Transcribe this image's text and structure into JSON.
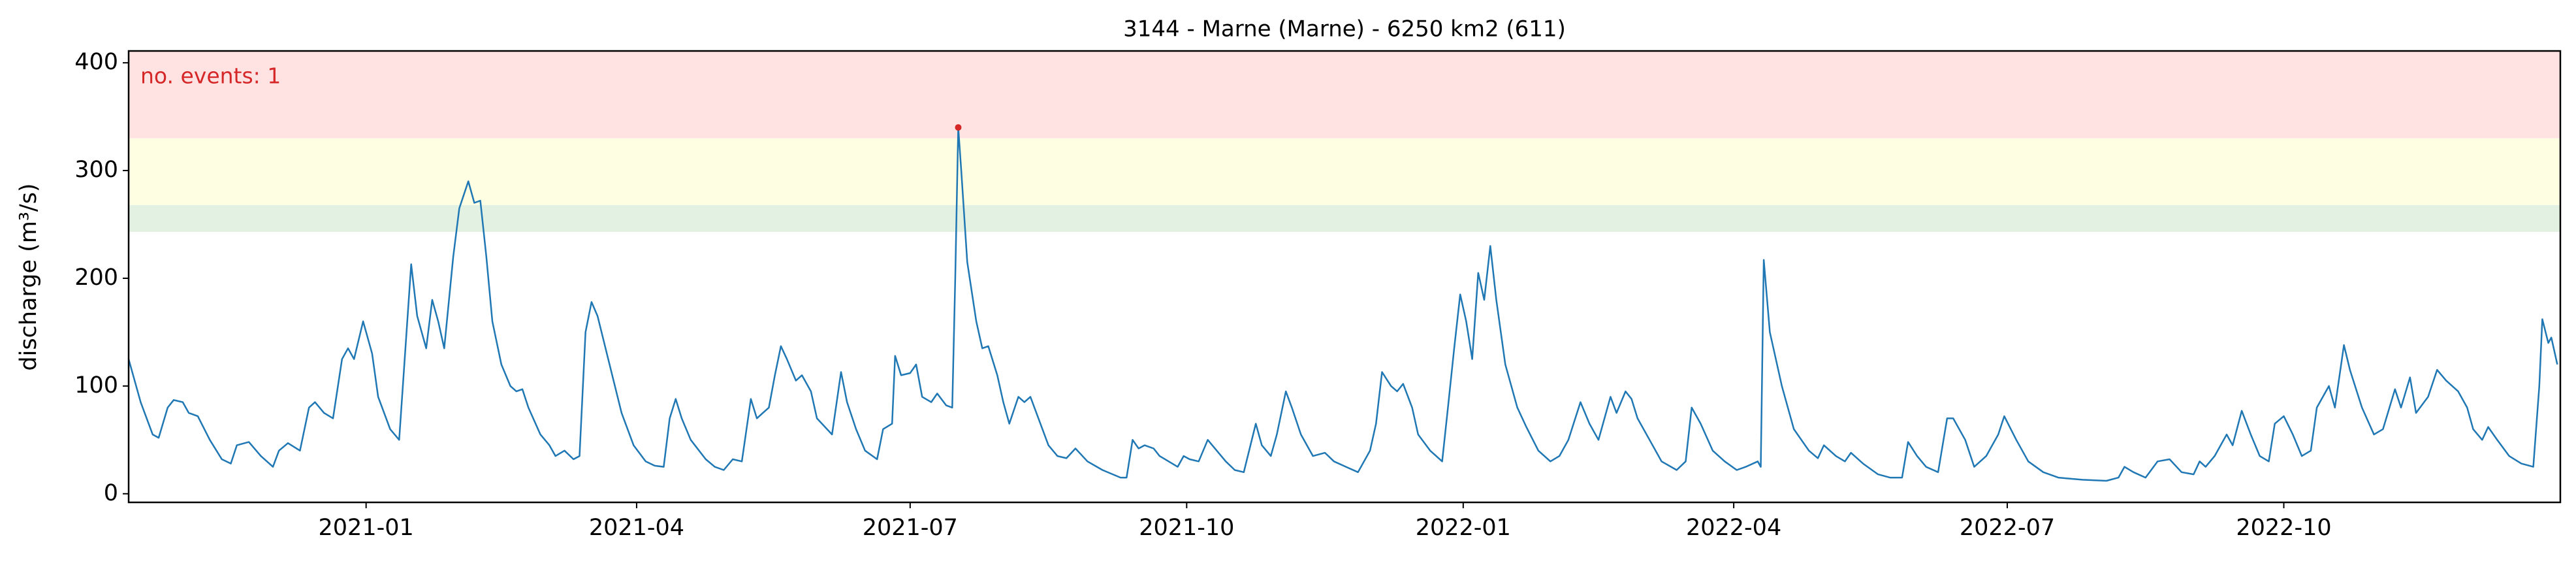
{
  "chart_data": {
    "type": "line",
    "title": "3144 - Marne (Marne) - 6250 km2 (611)",
    "y_label": "discharge (m³/s)",
    "annotation": "no. events: 1",
    "color": "#1f77b4",
    "xlim": [
      "2020-10-14",
      "2023-01-01"
    ],
    "xticks": [
      {
        "value": "2021-01",
        "label": "2021-01"
      },
      {
        "value": "2021-04",
        "label": "2021-04"
      },
      {
        "value": "2021-07",
        "label": "2021-07"
      },
      {
        "value": "2021-10",
        "label": "2021-10"
      },
      {
        "value": "2022-01",
        "label": "2022-01"
      },
      {
        "value": "2022-04",
        "label": "2022-04"
      },
      {
        "value": "2022-07",
        "label": "2022-07"
      },
      {
        "value": "2022-10",
        "label": "2022-10"
      }
    ],
    "ylim": [
      -8,
      411
    ],
    "yticks": [
      0,
      100,
      200,
      300,
      400
    ],
    "bands": [
      {
        "from": 243,
        "to": 268,
        "color": "#e3f1e3"
      },
      {
        "from": 268,
        "to": 330,
        "color": "#fefee2"
      },
      {
        "from": 330,
        "to": 411,
        "color": "#ffe2e2"
      }
    ],
    "events": [
      {
        "x": "2021-07-17",
        "y": 340,
        "color": "#d62728"
      }
    ],
    "x": [
      "2020-10-14",
      "2020-10-18",
      "2020-10-22",
      "2020-10-24",
      "2020-10-27",
      "2020-10-29",
      "2020-11-01",
      "2020-11-03",
      "2020-11-06",
      "2020-11-10",
      "2020-11-14",
      "2020-11-17",
      "2020-11-19",
      "2020-11-23",
      "2020-11-27",
      "2020-12-01",
      "2020-12-03",
      "2020-12-06",
      "2020-12-10",
      "2020-12-13",
      "2020-12-15",
      "2020-12-18",
      "2020-12-21",
      "2020-12-24",
      "2020-12-26",
      "2020-12-28",
      "2020-12-31",
      "2021-01-03",
      "2021-01-05",
      "2021-01-09",
      "2021-01-12",
      "2021-01-16",
      "2021-01-18",
      "2021-01-21",
      "2021-01-23",
      "2021-01-25",
      "2021-01-27",
      "2021-01-30",
      "2021-02-01",
      "2021-02-04",
      "2021-02-06",
      "2021-02-08",
      "2021-02-10",
      "2021-02-12",
      "2021-02-15",
      "2021-02-18",
      "2021-02-20",
      "2021-02-22",
      "2021-02-24",
      "2021-02-28",
      "2021-03-03",
      "2021-03-05",
      "2021-03-08",
      "2021-03-11",
      "2021-03-13",
      "2021-03-15",
      "2021-03-17",
      "2021-03-19",
      "2021-03-23",
      "2021-03-27",
      "2021-03-31",
      "2021-04-04",
      "2021-04-07",
      "2021-04-10",
      "2021-04-12",
      "2021-04-14",
      "2021-04-16",
      "2021-04-19",
      "2021-04-24",
      "2021-04-27",
      "2021-04-30",
      "2021-05-03",
      "2021-05-06",
      "2021-05-09",
      "2021-05-11",
      "2021-05-13",
      "2021-05-15",
      "2021-05-17",
      "2021-05-19",
      "2021-05-21",
      "2021-05-24",
      "2021-05-26",
      "2021-05-29",
      "2021-05-31",
      "2021-06-05",
      "2021-06-08",
      "2021-06-10",
      "2021-06-13",
      "2021-06-16",
      "2021-06-20",
      "2021-06-22",
      "2021-06-25",
      "2021-06-26",
      "2021-06-28",
      "2021-07-01",
      "2021-07-03",
      "2021-07-05",
      "2021-07-08",
      "2021-07-10",
      "2021-07-13",
      "2021-07-15",
      "2021-07-16",
      "2021-07-17",
      "2021-07-18",
      "2021-07-20",
      "2021-07-23",
      "2021-07-25",
      "2021-07-27",
      "2021-07-30",
      "2021-08-01",
      "2021-08-03",
      "2021-08-06",
      "2021-08-08",
      "2021-08-10",
      "2021-08-12",
      "2021-08-16",
      "2021-08-19",
      "2021-08-22",
      "2021-08-25",
      "2021-08-29",
      "2021-09-03",
      "2021-09-09",
      "2021-09-11",
      "2021-09-13",
      "2021-09-15",
      "2021-09-17",
      "2021-09-20",
      "2021-09-22",
      "2021-09-25",
      "2021-09-28",
      "2021-09-30",
      "2021-10-02",
      "2021-10-05",
      "2021-10-08",
      "2021-10-11",
      "2021-10-14",
      "2021-10-17",
      "2021-10-20",
      "2021-10-24",
      "2021-10-26",
      "2021-10-29",
      "2021-10-31",
      "2021-11-03",
      "2021-11-05",
      "2021-11-08",
      "2021-11-12",
      "2021-11-16",
      "2021-11-19",
      "2021-11-23",
      "2021-11-27",
      "2021-12-01",
      "2021-12-03",
      "2021-12-05",
      "2021-12-08",
      "2021-12-10",
      "2021-12-12",
      "2021-12-15",
      "2021-12-17",
      "2021-12-21",
      "2021-12-25",
      "2021-12-27",
      "2021-12-29",
      "2021-12-31",
      "2022-01-02",
      "2022-01-04",
      "2022-01-06",
      "2022-01-08",
      "2022-01-10",
      "2022-01-12",
      "2022-01-15",
      "2022-01-19",
      "2022-01-22",
      "2022-01-26",
      "2022-01-30",
      "2022-02-02",
      "2022-02-05",
      "2022-02-09",
      "2022-02-12",
      "2022-02-15",
      "2022-02-19",
      "2022-02-21",
      "2022-02-24",
      "2022-02-26",
      "2022-02-28",
      "2022-03-04",
      "2022-03-08",
      "2022-03-13",
      "2022-03-16",
      "2022-03-18",
      "2022-03-21",
      "2022-03-25",
      "2022-03-29",
      "2022-04-02",
      "2022-04-05",
      "2022-04-09",
      "2022-04-10",
      "2022-04-11",
      "2022-04-13",
      "2022-04-17",
      "2022-04-21",
      "2022-04-26",
      "2022-04-29",
      "2022-05-01",
      "2022-05-05",
      "2022-05-08",
      "2022-05-10",
      "2022-05-14",
      "2022-05-19",
      "2022-05-23",
      "2022-05-27",
      "2022-05-29",
      "2022-06-01",
      "2022-06-04",
      "2022-06-08",
      "2022-06-11",
      "2022-06-13",
      "2022-06-17",
      "2022-06-20",
      "2022-06-24",
      "2022-06-28",
      "2022-06-30",
      "2022-07-04",
      "2022-07-08",
      "2022-07-13",
      "2022-07-18",
      "2022-07-26",
      "2022-08-03",
      "2022-08-07",
      "2022-08-09",
      "2022-08-12",
      "2022-08-16",
      "2022-08-20",
      "2022-08-24",
      "2022-08-28",
      "2022-09-01",
      "2022-09-03",
      "2022-09-05",
      "2022-09-08",
      "2022-09-12",
      "2022-09-14",
      "2022-09-17",
      "2022-09-20",
      "2022-09-23",
      "2022-09-26",
      "2022-09-28",
      "2022-10-01",
      "2022-10-04",
      "2022-10-07",
      "2022-10-10",
      "2022-10-12",
      "2022-10-16",
      "2022-10-18",
      "2022-10-21",
      "2022-10-23",
      "2022-10-27",
      "2022-10-31",
      "2022-11-03",
      "2022-11-07",
      "2022-11-09",
      "2022-11-12",
      "2022-11-14",
      "2022-11-18",
      "2022-11-21",
      "2022-11-24",
      "2022-11-28",
      "2022-12-01",
      "2022-12-03",
      "2022-12-06",
      "2022-12-08",
      "2022-12-11",
      "2022-12-15",
      "2022-12-19",
      "2022-12-23",
      "2022-12-25",
      "2022-12-26",
      "2022-12-28",
      "2022-12-29",
      "2022-12-31"
    ],
    "values": [
      125,
      85,
      55,
      52,
      80,
      87,
      85,
      75,
      72,
      50,
      32,
      28,
      45,
      48,
      35,
      25,
      40,
      47,
      40,
      80,
      85,
      75,
      70,
      125,
      135,
      125,
      160,
      130,
      90,
      60,
      50,
      213,
      165,
      135,
      180,
      160,
      135,
      220,
      265,
      290,
      270,
      272,
      220,
      160,
      120,
      100,
      95,
      97,
      80,
      55,
      45,
      35,
      40,
      32,
      35,
      150,
      178,
      165,
      120,
      75,
      45,
      30,
      26,
      25,
      70,
      88,
      70,
      50,
      32,
      25,
      22,
      32,
      30,
      88,
      70,
      75,
      80,
      110,
      137,
      125,
      105,
      110,
      95,
      70,
      55,
      113,
      85,
      60,
      40,
      32,
      60,
      65,
      128,
      110,
      112,
      120,
      90,
      85,
      93,
      82,
      80,
      200,
      340,
      300,
      215,
      160,
      135,
      137,
      110,
      85,
      65,
      90,
      85,
      90,
      75,
      45,
      35,
      33,
      42,
      30,
      22,
      15,
      15,
      50,
      42,
      45,
      42,
      35,
      30,
      25,
      35,
      32,
      30,
      50,
      40,
      30,
      22,
      20,
      65,
      45,
      35,
      55,
      95,
      80,
      55,
      35,
      38,
      30,
      25,
      20,
      40,
      65,
      113,
      100,
      95,
      102,
      80,
      55,
      40,
      30,
      82,
      135,
      185,
      160,
      125,
      205,
      180,
      230,
      180,
      120,
      80,
      62,
      40,
      30,
      35,
      50,
      85,
      65,
      50,
      90,
      75,
      95,
      88,
      70,
      50,
      30,
      22,
      30,
      80,
      65,
      40,
      30,
      22,
      25,
      30,
      25,
      217,
      150,
      100,
      60,
      40,
      33,
      45,
      35,
      30,
      38,
      28,
      18,
      15,
      15,
      48,
      35,
      25,
      20,
      70,
      70,
      50,
      25,
      35,
      55,
      72,
      50,
      30,
      20,
      15,
      13,
      12,
      15,
      25,
      20,
      15,
      30,
      32,
      20,
      18,
      30,
      25,
      35,
      55,
      45,
      77,
      55,
      35,
      30,
      65,
      72,
      55,
      35,
      40,
      80,
      100,
      80,
      138,
      115,
      80,
      55,
      60,
      97,
      80,
      108,
      75,
      90,
      115,
      105,
      95,
      80,
      60,
      50,
      62,
      50,
      35,
      28,
      25,
      100,
      162,
      140,
      145,
      120
    ]
  }
}
